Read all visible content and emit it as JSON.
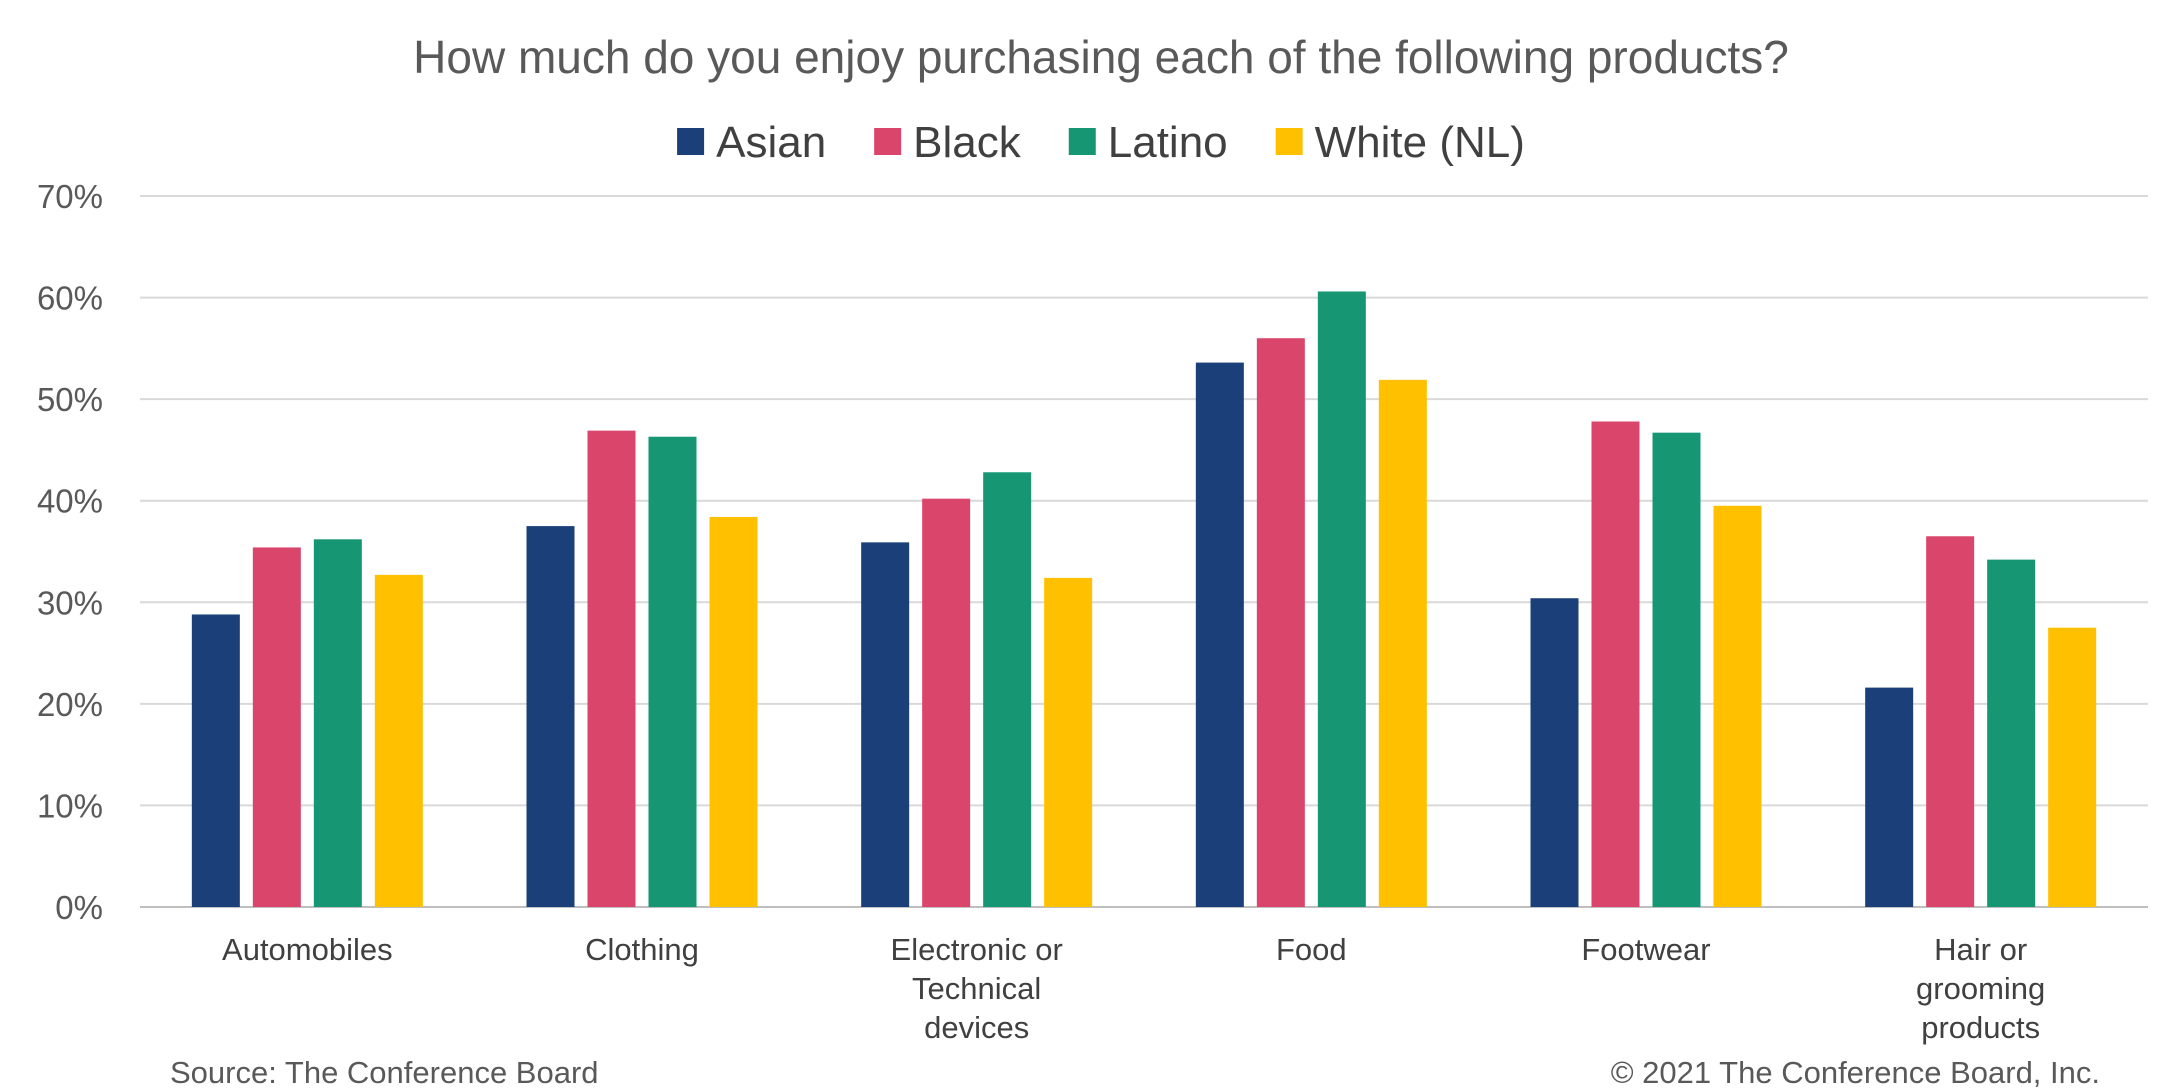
{
  "chart_data": {
    "type": "bar",
    "title": "How much do you enjoy purchasing each of the following products?",
    "categories": [
      [
        "Automobiles"
      ],
      [
        "Clothing"
      ],
      [
        "Electronic or",
        "Technical",
        "devices"
      ],
      [
        "Food"
      ],
      [
        "Footwear"
      ],
      [
        "Hair or",
        "grooming",
        "products"
      ]
    ],
    "series": [
      {
        "name": "Asian",
        "color": "#1b3f78",
        "values": [
          28.8,
          37.5,
          35.9,
          53.6,
          30.4,
          21.6
        ]
      },
      {
        "name": "Black",
        "color": "#d9456b",
        "values": [
          35.4,
          46.9,
          40.2,
          56.0,
          47.8,
          36.5
        ]
      },
      {
        "name": "Latino",
        "color": "#169673",
        "values": [
          36.2,
          46.3,
          42.8,
          60.6,
          46.7,
          34.2
        ]
      },
      {
        "name": "White (NL)",
        "color": "#ffc000",
        "values": [
          32.7,
          38.4,
          32.4,
          51.9,
          39.5,
          27.5
        ]
      }
    ],
    "ylim": [
      0,
      70
    ],
    "yticks": [
      0,
      10,
      20,
      30,
      40,
      50,
      60,
      70
    ],
    "ytick_labels": [
      "0%",
      "10%",
      "20%",
      "30%",
      "40%",
      "50%",
      "60%",
      "70%"
    ],
    "grid": true,
    "legend_position": "top"
  },
  "footer": {
    "source": "Source: The Conference Board",
    "copyright": "© 2021 The Conference Board, Inc."
  }
}
